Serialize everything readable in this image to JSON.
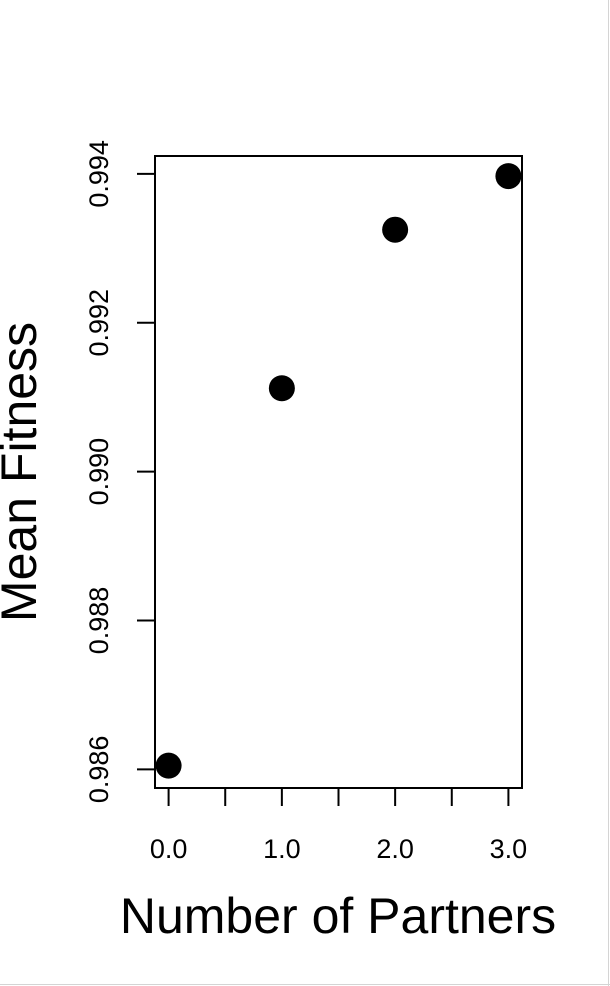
{
  "chart_data": {
    "type": "scatter",
    "title": "",
    "xlabel": "Number of Partners",
    "ylabel": "Mean Fitness",
    "xlim": [
      -0.12,
      3.12
    ],
    "ylim": [
      0.98575,
      0.99424
    ],
    "x_ticks": [
      {
        "value": 0,
        "label": "0.0"
      },
      {
        "value": 0.5,
        "label": ""
      },
      {
        "value": 1,
        "label": "1.0"
      },
      {
        "value": 1.5,
        "label": ""
      },
      {
        "value": 2,
        "label": "2.0"
      },
      {
        "value": 2.5,
        "label": ""
      },
      {
        "value": 3,
        "label": "3.0"
      }
    ],
    "y_ticks": [
      {
        "value": 0.986,
        "label": "0.986"
      },
      {
        "value": 0.988,
        "label": "0.988"
      },
      {
        "value": 0.99,
        "label": "0.990"
      },
      {
        "value": 0.992,
        "label": "0.992"
      },
      {
        "value": 0.994,
        "label": "0.994"
      }
    ],
    "points": [
      {
        "x": 0,
        "y": 0.98605
      },
      {
        "x": 1,
        "y": 0.99112
      },
      {
        "x": 2,
        "y": 0.99325
      },
      {
        "x": 3,
        "y": 0.99397
      }
    ],
    "marker_color": "#000000",
    "grid": false,
    "legend": "none"
  }
}
